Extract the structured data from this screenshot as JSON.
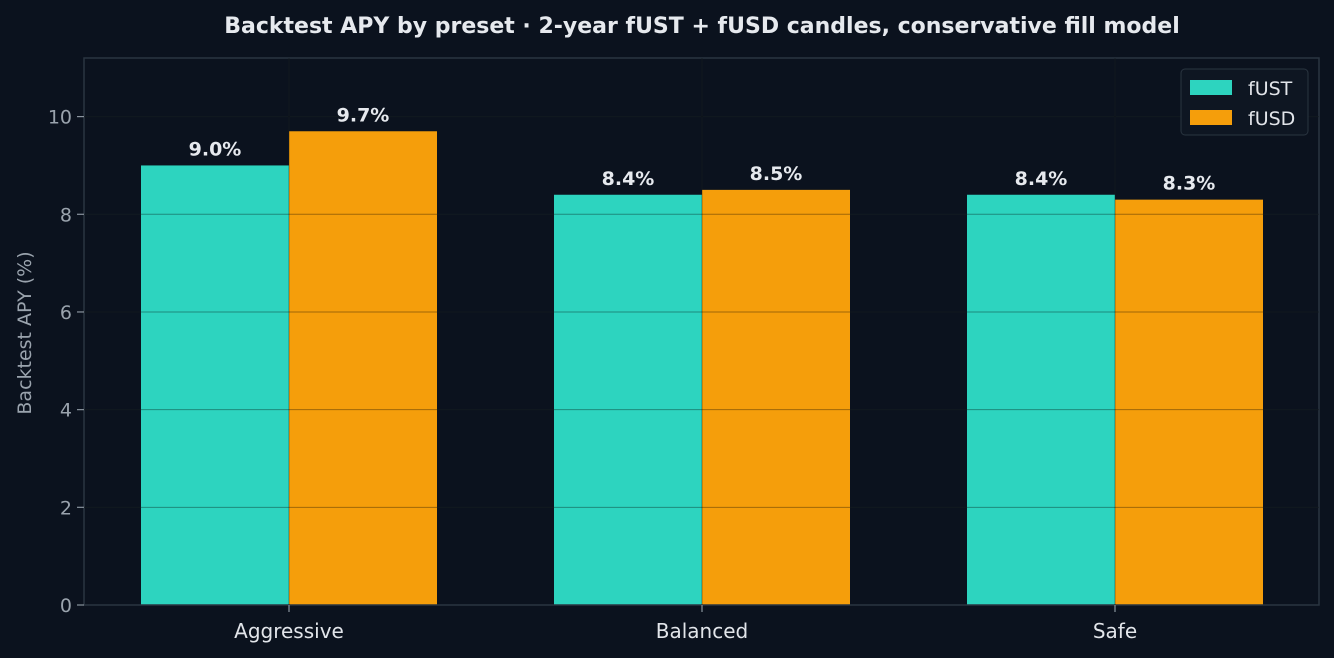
{
  "chart_data": {
    "type": "bar",
    "title": "Backtest APY by preset · 2-year fUST + fUSD candles, conservative fill model",
    "xlabel": "",
    "ylabel": "Backtest APY (%)",
    "ylim": [
      0,
      11.2
    ],
    "yticks": [
      0,
      2,
      4,
      6,
      8,
      10
    ],
    "grid": true,
    "legend_position": "top-right",
    "categories": [
      "Aggressive",
      "Balanced",
      "Safe"
    ],
    "series": [
      {
        "name": "fUST",
        "color": "#2dd4bf",
        "values": [
          9.0,
          8.4,
          8.4
        ],
        "labels": [
          "9.0%",
          "8.4%",
          "8.4%"
        ]
      },
      {
        "name": "fUSD",
        "color": "#f59e0b",
        "values": [
          9.7,
          8.5,
          8.3
        ],
        "labels": [
          "9.7%",
          "8.5%",
          "8.3%"
        ]
      }
    ]
  },
  "colors": {
    "background": "#0b121e",
    "grid": "#1b2631",
    "axis": "#2a3540"
  }
}
